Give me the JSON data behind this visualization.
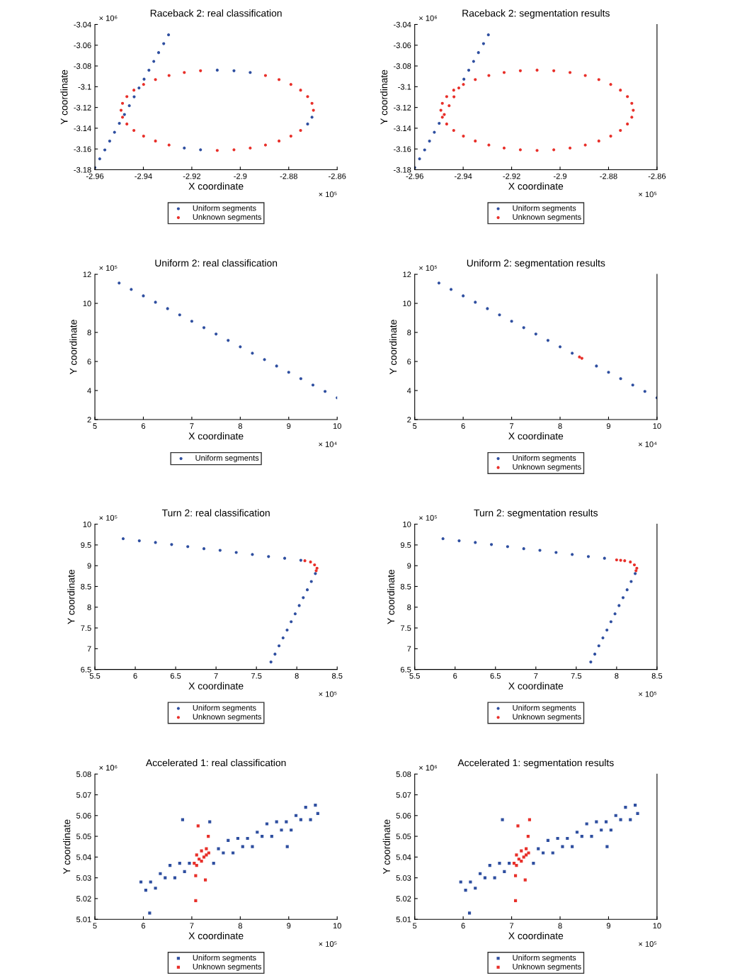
{
  "chart_data": [
    {
      "type": "scatter",
      "title": "Raceback 2: real classification",
      "xlabel": "X coordinate",
      "ylabel": "Y coordinate",
      "annotations": [
        "× 10⁶",
        "× 10⁵"
      ],
      "xlim": [
        -2.96,
        -2.86
      ],
      "xticks": [
        -2.96,
        -2.94,
        -2.92,
        -2.9,
        -2.88,
        -2.86
      ],
      "ylim": [
        -3.18,
        -3.04
      ],
      "yticks": [
        -3.18,
        -3.16,
        -3.14,
        -3.12,
        -3.1,
        -3.08,
        -3.06,
        -3.04
      ],
      "marker": "circle",
      "legend": "bottom",
      "grid": false,
      "series": [
        {
          "name": "Uniform segments",
          "color": "#2f4fa0",
          "x": [
            -2.96,
            -2.958,
            -2.9559,
            -2.9539,
            -2.9519,
            -2.9499,
            -2.9478,
            -2.9458,
            -2.9438,
            -2.9418,
            -2.9397,
            -2.9377,
            -2.9357,
            -2.9337,
            -2.9316,
            -2.9296,
            -2.8959,
            -2.9026,
            -2.9095,
            -2.9231,
            -2.9164,
            -2.8722,
            -2.8704
          ],
          "values": [
            -3.178,
            -3.1695,
            -3.1609,
            -3.1524,
            -3.1439,
            -3.1353,
            -3.1268,
            -3.1183,
            -3.1097,
            -3.1012,
            -3.0927,
            -3.0841,
            -3.0756,
            -3.0671,
            -3.0585,
            -3.05,
            -3.0863,
            -3.0846,
            -3.084,
            -3.1591,
            -3.1608,
            -3.1359,
            -3.1294
          ]
        },
        {
          "name": "Unknown segments",
          "color": "#e8302a",
          "x": [
            -2.8698,
            -2.8704,
            -2.8722,
            -2.8751,
            -2.8791,
            -2.884,
            -2.8896,
            -2.9164,
            -2.9231,
            -2.9294,
            -2.935,
            -2.9399,
            -2.9439,
            -2.9468,
            -2.9486,
            -2.9492,
            -2.9486,
            -2.9468,
            -2.9439,
            -2.9399,
            -2.935,
            -2.9294,
            -2.9095,
            -2.9026,
            -2.8959,
            -2.8896,
            -2.884,
            -2.8791,
            -2.8751
          ],
          "values": [
            -3.1227,
            -3.116,
            -3.1095,
            -3.1033,
            -3.0978,
            -3.0931,
            -3.0892,
            -3.0846,
            -3.0863,
            -3.0892,
            -3.0931,
            -3.0978,
            -3.1033,
            -3.1095,
            -3.116,
            -3.1227,
            -3.1294,
            -3.1359,
            -3.1421,
            -3.1476,
            -3.1523,
            -3.1562,
            -3.1614,
            -3.1608,
            -3.1591,
            -3.1562,
            -3.1523,
            -3.1476,
            -3.1421
          ]
        }
      ]
    },
    {
      "type": "scatter",
      "title": "Raceback 2: segmentation results",
      "xlabel": "X coordinate",
      "ylabel": "Y coordinate",
      "annotations": [
        "× 10⁶",
        "× 10⁵"
      ],
      "xlim": [
        -2.96,
        -2.86
      ],
      "xticks": [
        -2.96,
        -2.94,
        -2.92,
        -2.9,
        -2.88,
        -2.86
      ],
      "ylim": [
        -3.18,
        -3.04
      ],
      "yticks": [
        -3.18,
        -3.16,
        -3.14,
        -3.12,
        -3.1,
        -3.08,
        -3.06,
        -3.04
      ],
      "marker": "circle",
      "legend": "bottom",
      "grid": false,
      "series": [
        {
          "name": "Uniform segments",
          "color": "#2f4fa0",
          "x": [
            -2.96,
            -2.958,
            -2.9559,
            -2.9539,
            -2.9519,
            -2.9499,
            -2.9397,
            -2.9377,
            -2.9357,
            -2.9337,
            -2.9316,
            -2.9296
          ],
          "values": [
            -3.178,
            -3.1695,
            -3.1609,
            -3.1524,
            -3.1439,
            -3.1353,
            -3.0927,
            -3.0841,
            -3.0756,
            -3.0671,
            -3.0585,
            -3.05
          ]
        },
        {
          "name": "Unknown segments",
          "color": "#e8302a",
          "x": [
            -2.9478,
            -2.9458,
            -2.9438,
            -2.9418,
            -2.8698,
            -2.8704,
            -2.8722,
            -2.8751,
            -2.8791,
            -2.884,
            -2.8896,
            -2.8959,
            -2.9026,
            -2.9095,
            -2.9164,
            -2.9231,
            -2.9294,
            -2.935,
            -2.9399,
            -2.9439,
            -2.9468,
            -2.9486,
            -2.9492,
            -2.9486,
            -2.9468,
            -2.9439,
            -2.9399,
            -2.935,
            -2.9294,
            -2.9231,
            -2.9164,
            -2.9095,
            -2.9026,
            -2.8959,
            -2.8896,
            -2.884,
            -2.8791,
            -2.8751,
            -2.8722,
            -2.8704
          ],
          "values": [
            -3.1268,
            -3.1183,
            -3.1097,
            -3.1012,
            -3.1227,
            -3.116,
            -3.1095,
            -3.1033,
            -3.0978,
            -3.0931,
            -3.0892,
            -3.0863,
            -3.0846,
            -3.084,
            -3.0846,
            -3.0863,
            -3.0892,
            -3.0931,
            -3.0978,
            -3.1033,
            -3.1095,
            -3.116,
            -3.1227,
            -3.1294,
            -3.1359,
            -3.1421,
            -3.1476,
            -3.1523,
            -3.1562,
            -3.1591,
            -3.1608,
            -3.1614,
            -3.1608,
            -3.1591,
            -3.1562,
            -3.1523,
            -3.1476,
            -3.1421,
            -3.1359,
            -3.1294
          ]
        }
      ]
    },
    {
      "type": "scatter",
      "title": "Uniform 2: real classification",
      "xlabel": "X coordinate",
      "ylabel": "Y coordinate",
      "annotations": [
        "× 10⁵",
        "× 10⁴"
      ],
      "xlim": [
        5,
        10
      ],
      "xticks": [
        5,
        6,
        7,
        8,
        9,
        10
      ],
      "ylim": [
        2,
        12
      ],
      "yticks": [
        2,
        4,
        6,
        8,
        10,
        12
      ],
      "marker": "circle",
      "legend": "bottom",
      "grid": false,
      "series": [
        {
          "name": "Uniform segments",
          "color": "#2f4fa0",
          "x": [
            5.5,
            5.75,
            6,
            6.25,
            6.5,
            6.75,
            7,
            7.25,
            7.5,
            7.75,
            8,
            8.25,
            8.5,
            8.75,
            9,
            9.25,
            9.5,
            9.75,
            10
          ],
          "values": [
            11.4,
            10.96,
            10.52,
            10.08,
            9.64,
            9.21,
            8.77,
            8.33,
            7.89,
            7.45,
            7.01,
            6.57,
            6.13,
            5.69,
            5.26,
            4.82,
            4.38,
            3.94,
            3.5
          ]
        }
      ]
    },
    {
      "type": "scatter",
      "title": "Uniform 2: segmentation results",
      "xlabel": "X coordinate",
      "ylabel": "Y coordinate",
      "annotations": [
        "× 10⁵",
        "× 10⁴"
      ],
      "xlim": [
        5,
        10
      ],
      "xticks": [
        5,
        6,
        7,
        8,
        9,
        10
      ],
      "ylim": [
        2,
        12
      ],
      "yticks": [
        2,
        4,
        6,
        8,
        10,
        12
      ],
      "marker": "circle",
      "legend": "bottom",
      "grid": false,
      "series": [
        {
          "name": "Uniform segments",
          "color": "#2f4fa0",
          "x": [
            5.5,
            5.75,
            6,
            6.25,
            6.5,
            6.75,
            7,
            7.25,
            7.5,
            7.75,
            8,
            8.25,
            8.75,
            9,
            9.25,
            9.5,
            9.75,
            10
          ],
          "values": [
            11.4,
            10.96,
            10.52,
            10.08,
            9.64,
            9.21,
            8.77,
            8.33,
            7.89,
            7.45,
            7.01,
            6.57,
            5.69,
            5.26,
            4.82,
            4.38,
            3.94,
            3.5
          ]
        },
        {
          "name": "Unknown segments",
          "color": "#e8302a",
          "x": [
            8.4,
            8.45
          ],
          "values": [
            6.31,
            6.22
          ]
        }
      ]
    },
    {
      "type": "scatter",
      "title": "Turn 2: real classification",
      "xlabel": "X coordinate",
      "ylabel": "Y coordinate",
      "annotations": [
        "× 10⁵",
        "× 10⁵"
      ],
      "xlim": [
        5.5,
        8.5
      ],
      "xticks": [
        5.5,
        6,
        6.5,
        7,
        7.5,
        8,
        8.5
      ],
      "ylim": [
        6.5,
        10
      ],
      "yticks": [
        6.5,
        7,
        7.5,
        8,
        8.5,
        9,
        9.5,
        10
      ],
      "marker": "circle",
      "legend": "bottom",
      "grid": false,
      "series": [
        {
          "name": "Uniform segments",
          "color": "#2f4fa0",
          "x": [
            5.85,
            6.05,
            6.25,
            6.45,
            6.65,
            6.85,
            7.05,
            7.25,
            7.45,
            7.65,
            7.85,
            8.05,
            8.23,
            8.18,
            8.13,
            8.08,
            8.03,
            7.98,
            7.93,
            7.88,
            7.83,
            7.78,
            7.73,
            7.68
          ],
          "values": [
            9.65,
            9.6,
            9.56,
            9.51,
            9.46,
            9.41,
            9.37,
            9.32,
            9.27,
            9.22,
            9.18,
            9.13,
            8.81,
            8.62,
            8.42,
            8.23,
            8.04,
            7.84,
            7.65,
            7.45,
            7.26,
            7.07,
            6.87,
            6.68
          ]
        },
        {
          "name": "Unknown segments",
          "color": "#e8302a",
          "x": [
            8.1,
            8.17,
            8.22,
            8.25,
            8.24
          ],
          "values": [
            9.12,
            9.09,
            9.02,
            8.94,
            8.88
          ]
        }
      ]
    },
    {
      "type": "scatter",
      "title": "Turn 2: segmentation results",
      "xlabel": "X coordinate",
      "ylabel": "Y coordinate",
      "annotations": [
        "× 10⁵",
        "× 10⁵"
      ],
      "xlim": [
        5.5,
        8.5
      ],
      "xticks": [
        5.5,
        6,
        6.5,
        7,
        7.5,
        8,
        8.5
      ],
      "ylim": [
        6.5,
        10
      ],
      "yticks": [
        6.5,
        7,
        7.5,
        8,
        8.5,
        9,
        9.5,
        10
      ],
      "marker": "circle",
      "legend": "bottom",
      "grid": false,
      "series": [
        {
          "name": "Uniform segments",
          "color": "#2f4fa0",
          "x": [
            5.85,
            6.05,
            6.25,
            6.45,
            6.65,
            6.85,
            7.05,
            7.25,
            7.45,
            7.65,
            7.85,
            8.23,
            8.18,
            8.13,
            8.08,
            8.03,
            7.98,
            7.93,
            7.88,
            7.83,
            7.78,
            7.73,
            7.68
          ],
          "values": [
            9.65,
            9.6,
            9.56,
            9.51,
            9.46,
            9.41,
            9.37,
            9.32,
            9.27,
            9.22,
            9.18,
            8.81,
            8.62,
            8.42,
            8.23,
            8.04,
            7.84,
            7.65,
            7.45,
            7.26,
            7.07,
            6.87,
            6.68
          ]
        },
        {
          "name": "Unknown segments",
          "color": "#e8302a",
          "x": [
            8.0,
            8.05,
            8.1,
            8.17,
            8.22,
            8.25,
            8.24
          ],
          "values": [
            9.14,
            9.13,
            9.12,
            9.09,
            9.02,
            8.94,
            8.88
          ]
        }
      ]
    },
    {
      "type": "scatter",
      "title": "Accelerated 1: real classification",
      "xlabel": "X coordinate",
      "ylabel": "Y coordinate",
      "annotations": [
        "× 10⁶",
        "× 10⁵"
      ],
      "xlim": [
        5,
        10
      ],
      "xticks": [
        5,
        6,
        7,
        8,
        9,
        10
      ],
      "ylim": [
        5.01,
        5.08
      ],
      "yticks": [
        5.01,
        5.02,
        5.03,
        5.04,
        5.05,
        5.06,
        5.07,
        5.08
      ],
      "marker": "square",
      "legend": "bottom",
      "grid": false,
      "series": [
        {
          "name": "Uniform segments",
          "color": "#2f4fa0",
          "x": [
            5.95,
            6.05,
            6.15,
            6.25,
            6.35,
            6.45,
            6.55,
            6.65,
            6.75,
            6.85,
            6.95,
            7.45,
            7.55,
            7.65,
            7.75,
            7.85,
            7.95,
            8.05,
            8.15,
            8.25,
            8.35,
            8.45,
            8.55,
            8.65,
            8.75,
            8.85,
            8.95,
            9.05,
            9.15,
            9.25,
            9.35,
            9.45,
            9.55,
            9.6,
            6.81,
            6.13,
            7.37,
            8.97
          ],
          "values": [
            5.028,
            5.024,
            5.028,
            5.025,
            5.032,
            5.03,
            5.036,
            5.03,
            5.037,
            5.033,
            5.037,
            5.037,
            5.044,
            5.042,
            5.048,
            5.042,
            5.049,
            5.045,
            5.049,
            5.045,
            5.052,
            5.05,
            5.056,
            5.05,
            5.057,
            5.053,
            5.057,
            5.053,
            5.06,
            5.058,
            5.064,
            5.058,
            5.065,
            5.061,
            5.058,
            5.013,
            5.057,
            5.045
          ]
        },
        {
          "name": "Unknown segments",
          "color": "#e8302a",
          "x": [
            7.05,
            7.1,
            7.15,
            7.2,
            7.25,
            7.3,
            7.35,
            7.1,
            7.2,
            7.3,
            7.13,
            7.34,
            7.08,
            7.28,
            7.08
          ],
          "values": [
            5.037,
            5.041,
            5.039,
            5.043,
            5.04,
            5.044,
            5.042,
            5.036,
            5.038,
            5.041,
            5.055,
            5.05,
            5.031,
            5.029,
            5.019
          ]
        }
      ]
    },
    {
      "type": "scatter",
      "title": "Accelerated 1: segmentation results",
      "xlabel": "X coordinate",
      "ylabel": "Y coordinate",
      "annotations": [
        "× 10⁶",
        "× 10⁵"
      ],
      "xlim": [
        5,
        10
      ],
      "xticks": [
        5,
        6,
        7,
        8,
        9,
        10
      ],
      "ylim": [
        5.01,
        5.08
      ],
      "yticks": [
        5.01,
        5.02,
        5.03,
        5.04,
        5.05,
        5.06,
        5.07,
        5.08
      ],
      "marker": "square",
      "legend": "bottom",
      "grid": false,
      "series": [
        {
          "name": "Uniform segments",
          "color": "#2f4fa0",
          "x": [
            5.95,
            6.05,
            6.15,
            6.25,
            6.35,
            6.45,
            6.55,
            6.65,
            6.75,
            6.85,
            6.95,
            7.45,
            7.55,
            7.65,
            7.75,
            7.85,
            7.95,
            8.05,
            8.15,
            8.25,
            8.35,
            8.45,
            8.55,
            8.65,
            8.75,
            8.85,
            8.95,
            9.05,
            9.15,
            9.25,
            9.35,
            9.45,
            9.55,
            9.6,
            6.81,
            6.13,
            8.97
          ],
          "values": [
            5.028,
            5.024,
            5.028,
            5.025,
            5.032,
            5.03,
            5.036,
            5.03,
            5.037,
            5.033,
            5.037,
            5.037,
            5.044,
            5.042,
            5.048,
            5.042,
            5.049,
            5.045,
            5.049,
            5.045,
            5.052,
            5.05,
            5.056,
            5.05,
            5.057,
            5.053,
            5.057,
            5.053,
            5.06,
            5.058,
            5.064,
            5.058,
            5.065,
            5.061,
            5.058,
            5.013,
            5.045
          ]
        },
        {
          "name": "Unknown segments",
          "color": "#e8302a",
          "x": [
            7.05,
            7.1,
            7.15,
            7.2,
            7.25,
            7.3,
            7.35,
            7.1,
            7.2,
            7.3,
            7.13,
            7.34,
            7.08,
            7.28,
            7.08,
            7.37
          ],
          "values": [
            5.037,
            5.041,
            5.039,
            5.043,
            5.04,
            5.044,
            5.042,
            5.036,
            5.038,
            5.041,
            5.055,
            5.05,
            5.031,
            5.029,
            5.019,
            5.058
          ]
        }
      ]
    }
  ]
}
